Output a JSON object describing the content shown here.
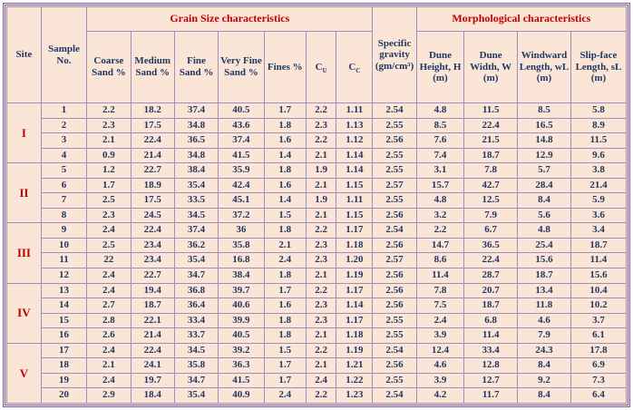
{
  "colors": {
    "bg": "#FBE5D6",
    "red": "#C00000",
    "navy": "#1F3864",
    "frame": "#7B5BA6",
    "grid": "#9C8FC0"
  },
  "header": {
    "site": "Site",
    "sample": "Sample No.",
    "grain_group": "Grain Size characteristics",
    "specific_gravity": "Specific gravity (gm/cm³)",
    "morph_group": "Morphological characteristics",
    "grain_cols": [
      {
        "text": "Coarse Sand %"
      },
      {
        "text": "Medium Sand %"
      },
      {
        "text": "Fine Sand %"
      },
      {
        "text": "Very Fine Sand %"
      },
      {
        "text": "Fines %"
      },
      {
        "base": "C",
        "sub": "U"
      },
      {
        "base": "C",
        "sub": "C"
      }
    ],
    "morph_cols": [
      "Dune Height, H (m)",
      "Dune Width, W (m)",
      "Windward Length, wL (m)",
      "Slip-face Length, sL (m)"
    ]
  },
  "chart_data": {
    "type": "table",
    "title": "",
    "columns": [
      "Site",
      "Sample No.",
      "Coarse Sand %",
      "Medium Sand %",
      "Fine Sand %",
      "Very Fine Sand %",
      "Fines %",
      "CU",
      "CC",
      "Specific gravity (gm/cm³)",
      "Dune Height, H (m)",
      "Dune Width, W (m)",
      "Windward Length, wL (m)",
      "Slip-face Length, sL (m)"
    ],
    "groups": [
      {
        "site": "I",
        "rows": [
          [
            "1",
            "2.2",
            "18.2",
            "37.4",
            "40.5",
            "1.7",
            "2.2",
            "1.11",
            "2.54",
            "4.8",
            "11.5",
            "8.5",
            "5.8"
          ],
          [
            "2",
            "2.3",
            "17.5",
            "34.8",
            "43.6",
            "1.8",
            "2.3",
            "1.13",
            "2.55",
            "8.5",
            "22.4",
            "16.5",
            "8.9"
          ],
          [
            "3",
            "2.1",
            "22.4",
            "36.5",
            "37.4",
            "1.6",
            "2.2",
            "1.12",
            "2.56",
            "7.6",
            "21.5",
            "14.8",
            "11.5"
          ],
          [
            "4",
            "0.9",
            "21.4",
            "34.8",
            "41.5",
            "1.4",
            "2.1",
            "1.14",
            "2.55",
            "7.4",
            "18.7",
            "12.9",
            "9.6"
          ]
        ]
      },
      {
        "site": "II",
        "rows": [
          [
            "5",
            "1.2",
            "22.7",
            "38.4",
            "35.9",
            "1.8",
            "1.9",
            "1.14",
            "2.55",
            "3.1",
            "7.8",
            "5.7",
            "3.8"
          ],
          [
            "6",
            "1.7",
            "18.9",
            "35.4",
            "42.4",
            "1.6",
            "2.1",
            "1.15",
            "2.57",
            "15.7",
            "42.7",
            "28.4",
            "21.4"
          ],
          [
            "7",
            "2.5",
            "17.5",
            "33.5",
            "45.1",
            "1.4",
            "1.9",
            "1.11",
            "2.55",
            "4.8",
            "12.5",
            "8.4",
            "5.9"
          ],
          [
            "8",
            "2.3",
            "24.5",
            "34.5",
            "37.2",
            "1.5",
            "2.1",
            "1.15",
            "2.56",
            "3.2",
            "7.9",
            "5.6",
            "3.6"
          ]
        ]
      },
      {
        "site": "III",
        "rows": [
          [
            "9",
            "2.4",
            "22.4",
            "37.4",
            "36",
            "1.8",
            "2.2",
            "1.17",
            "2.54",
            "2.2",
            "6.7",
            "4.8",
            "3.4"
          ],
          [
            "10",
            "2.5",
            "23.4",
            "36.2",
            "35.8",
            "2.1",
            "2.3",
            "1.18",
            "2.56",
            "14.7",
            "36.5",
            "25.4",
            "18.7"
          ],
          [
            "11",
            "22",
            "23.4",
            "35.4",
            "16.8",
            "2.4",
            "2.3",
            "1.20",
            "2.57",
            "8.6",
            "22.4",
            "15.6",
            "11.4"
          ],
          [
            "12",
            "2.4",
            "22.7",
            "34.7",
            "38.4",
            "1.8",
            "2.1",
            "1.19",
            "2.56",
            "11.4",
            "28.7",
            "18.7",
            "15.6"
          ]
        ]
      },
      {
        "site": "IV",
        "rows": [
          [
            "13",
            "2.4",
            "19.4",
            "36.8",
            "39.7",
            "1.7",
            "2.2",
            "1.17",
            "2.56",
            "7.8",
            "20.7",
            "13.4",
            "10.4"
          ],
          [
            "14",
            "2.7",
            "18.7",
            "36.4",
            "40.6",
            "1.6",
            "2.3",
            "1.14",
            "2.56",
            "7.5",
            "18.7",
            "11.8",
            "10.2"
          ],
          [
            "15",
            "2.8",
            "22.1",
            "33.4",
            "39.9",
            "1.8",
            "2.3",
            "1.17",
            "2.55",
            "2.4",
            "6.8",
            "4.6",
            "3.7"
          ],
          [
            "16",
            "2.6",
            "21.4",
            "33.7",
            "40.5",
            "1.8",
            "2.1",
            "1.18",
            "2.55",
            "3.9",
            "11.4",
            "7.9",
            "6.1"
          ]
        ]
      },
      {
        "site": "V",
        "rows": [
          [
            "17",
            "2.4",
            "22.4",
            "34.5",
            "39.2",
            "1.5",
            "2.2",
            "1.19",
            "2.54",
            "12.4",
            "33.4",
            "24.3",
            "17.8"
          ],
          [
            "18",
            "2.1",
            "24.1",
            "35.8",
            "36.3",
            "1.7",
            "2.1",
            "1.21",
            "2.56",
            "4.6",
            "12.8",
            "8.4",
            "6.9"
          ],
          [
            "19",
            "2.4",
            "19.7",
            "34.7",
            "41.5",
            "1.7",
            "2.4",
            "1.22",
            "2.55",
            "3.9",
            "12.7",
            "9.2",
            "7.3"
          ],
          [
            "20",
            "2.9",
            "18.4",
            "35.4",
            "40.9",
            "2.4",
            "2.2",
            "1.23",
            "2.54",
            "4.2",
            "11.7",
            "8.4",
            "6.4"
          ]
        ]
      }
    ]
  }
}
